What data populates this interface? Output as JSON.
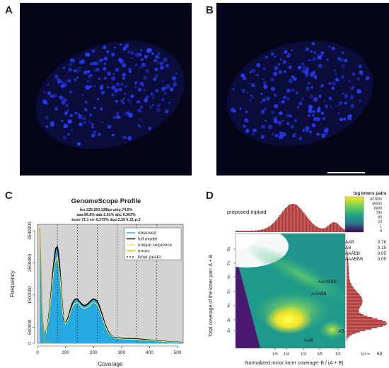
{
  "panels": {
    "a": {
      "letter": "A"
    },
    "b": {
      "letter": "B"
    },
    "c": {
      "letter": "C"
    },
    "d": {
      "letter": "D"
    }
  },
  "colors": {
    "nucleus_dot": "#2a3cff",
    "micro_bg": "#05051a",
    "observed": "#27a9e1",
    "full_model": "#000000",
    "unique_sequence": "#e8e85a",
    "errors": "#c8a000",
    "kmer_peaks": "#333333",
    "gs_bg": "#d3d3d3",
    "histogram": "#b03a3a"
  },
  "chart_data": [
    {
      "type": "line",
      "title": "GenomeScope Profile",
      "subtitle_lines": [
        "len:228,260,138bp uniq:74.5%",
        "aaa:96.8% aab:2.91% abc:0.303%",
        "kcov:71.1 err:0.272% dup:2.55 k:21 p:3"
      ],
      "xlabel": "Coverage",
      "ylabel": "Frequency",
      "xlim": [
        0,
        520
      ],
      "ylim": [
        0,
        3700000
      ],
      "x_ticks": [
        0,
        100,
        200,
        300,
        400,
        500
      ],
      "y_ticks": [
        0,
        500000,
        1500000,
        2500000,
        3500000
      ],
      "y_tick_labels": [
        "0",
        "500000",
        "1500000",
        "2500000",
        "3500000"
      ],
      "kmer_peaks": [
        71,
        142,
        213,
        284,
        355,
        426
      ],
      "legend_position": "top-right",
      "series": [
        {
          "name": "observed",
          "style": "area",
          "x": [
            8,
            12,
            16,
            20,
            25,
            30,
            35,
            40,
            45,
            50,
            55,
            60,
            65,
            71,
            75,
            80,
            85,
            90,
            95,
            100,
            105,
            110,
            115,
            120,
            125,
            130,
            135,
            142,
            150,
            160,
            170,
            180,
            190,
            200,
            213,
            220,
            230,
            240,
            250,
            260,
            270,
            280,
            300,
            320,
            340,
            360,
            380,
            400,
            420,
            440,
            460,
            480,
            500,
            520
          ],
          "y": [
            3600000,
            2600000,
            1400000,
            700000,
            350000,
            330000,
            500000,
            800000,
            1200000,
            1700000,
            2200000,
            2650000,
            2950000,
            3000000,
            2800000,
            2300000,
            1600000,
            1000000,
            720000,
            650000,
            700000,
            820000,
            980000,
            1130000,
            1250000,
            1330000,
            1370000,
            1380000,
            1300000,
            1200000,
            1170000,
            1230000,
            1320000,
            1380000,
            1320000,
            1180000,
            900000,
            620000,
            400000,
            270000,
            200000,
            170000,
            150000,
            140000,
            140000,
            130000,
            115000,
            100000,
            85000,
            70000,
            55000,
            45000,
            35000,
            25000
          ]
        },
        {
          "name": "full model",
          "x": [
            30,
            35,
            40,
            45,
            50,
            55,
            60,
            65,
            71,
            75,
            80,
            85,
            90,
            95,
            100,
            105,
            110,
            115,
            120,
            125,
            130,
            135,
            142,
            150,
            160,
            170,
            180,
            190,
            200,
            213,
            220,
            230,
            240,
            250,
            260,
            270,
            280,
            300,
            320,
            340,
            360,
            380,
            400,
            420,
            440,
            460,
            480,
            500,
            520
          ],
          "y": [
            330000,
            500000,
            800000,
            1200000,
            1700000,
            2200000,
            2650000,
            2950000,
            3000000,
            2800000,
            2300000,
            1600000,
            1000000,
            720000,
            650000,
            700000,
            820000,
            980000,
            1130000,
            1250000,
            1330000,
            1370000,
            1380000,
            1300000,
            1200000,
            1170000,
            1230000,
            1320000,
            1380000,
            1320000,
            1180000,
            900000,
            620000,
            400000,
            270000,
            200000,
            170000,
            150000,
            140000,
            140000,
            130000,
            115000,
            100000,
            85000,
            70000,
            55000,
            45000,
            35000,
            25000
          ]
        },
        {
          "name": "unique sequence",
          "x": [
            30,
            40,
            50,
            60,
            71,
            80,
            90,
            100,
            110,
            120,
            130,
            142,
            150,
            160,
            170,
            180,
            190,
            200,
            213,
            220,
            230,
            240,
            250,
            260,
            280,
            300,
            320,
            340,
            360,
            380,
            400,
            420,
            440,
            460,
            480,
            500,
            520
          ],
          "y": [
            300000,
            740000,
            1560000,
            2430000,
            2700000,
            2100000,
            930000,
            600000,
            750000,
            1040000,
            1220000,
            1270000,
            1200000,
            1100000,
            1080000,
            1130000,
            1210000,
            1270000,
            1210000,
            1080000,
            830000,
            570000,
            370000,
            250000,
            155000,
            135000,
            125000,
            125000,
            115000,
            100000,
            90000,
            75000,
            62000,
            48000,
            40000,
            30000,
            22000
          ]
        },
        {
          "name": "errors",
          "x": [
            8,
            12,
            16,
            20,
            25,
            30,
            40,
            50
          ],
          "y": [
            3600000,
            2500000,
            1100000,
            300000,
            60000,
            10000,
            0,
            0
          ]
        },
        {
          "name": "kmer-peaks",
          "style": "dashed-vertical"
        }
      ]
    },
    {
      "type": "heatmap",
      "title": "proposed triploid",
      "xlabel": "Normalized minor kmer coverage: B / (A + B)",
      "ylabel": "Total coverage of the kmer pair: A + B",
      "x_ticks": [
        "1/5",
        "1/4",
        "1/3",
        "2/5",
        "1/2"
      ],
      "y_ticks": [
        "2n",
        "3n",
        "4n",
        "5n",
        "6n",
        "7n",
        "8n"
      ],
      "colorbar": {
        "title": "log kmers pairs",
        "ticks": [
          "427000",
          "49000",
          "6000",
          "700",
          "80",
          "10",
          "1",
          "0"
        ]
      },
      "labels": [
        "AAB",
        "AB",
        "AAABB",
        "AAABBB"
      ],
      "proportions": [
        {
          "name": "AAB",
          "value": "0.76"
        },
        {
          "name": "AB",
          "value": "0.15"
        },
        {
          "name": "AAABB",
          "value": "0.05"
        },
        {
          "name": "AAABBB",
          "value": "0.05"
        }
      ],
      "one_n_label": "1n =",
      "one_n_value": "69"
    }
  ]
}
